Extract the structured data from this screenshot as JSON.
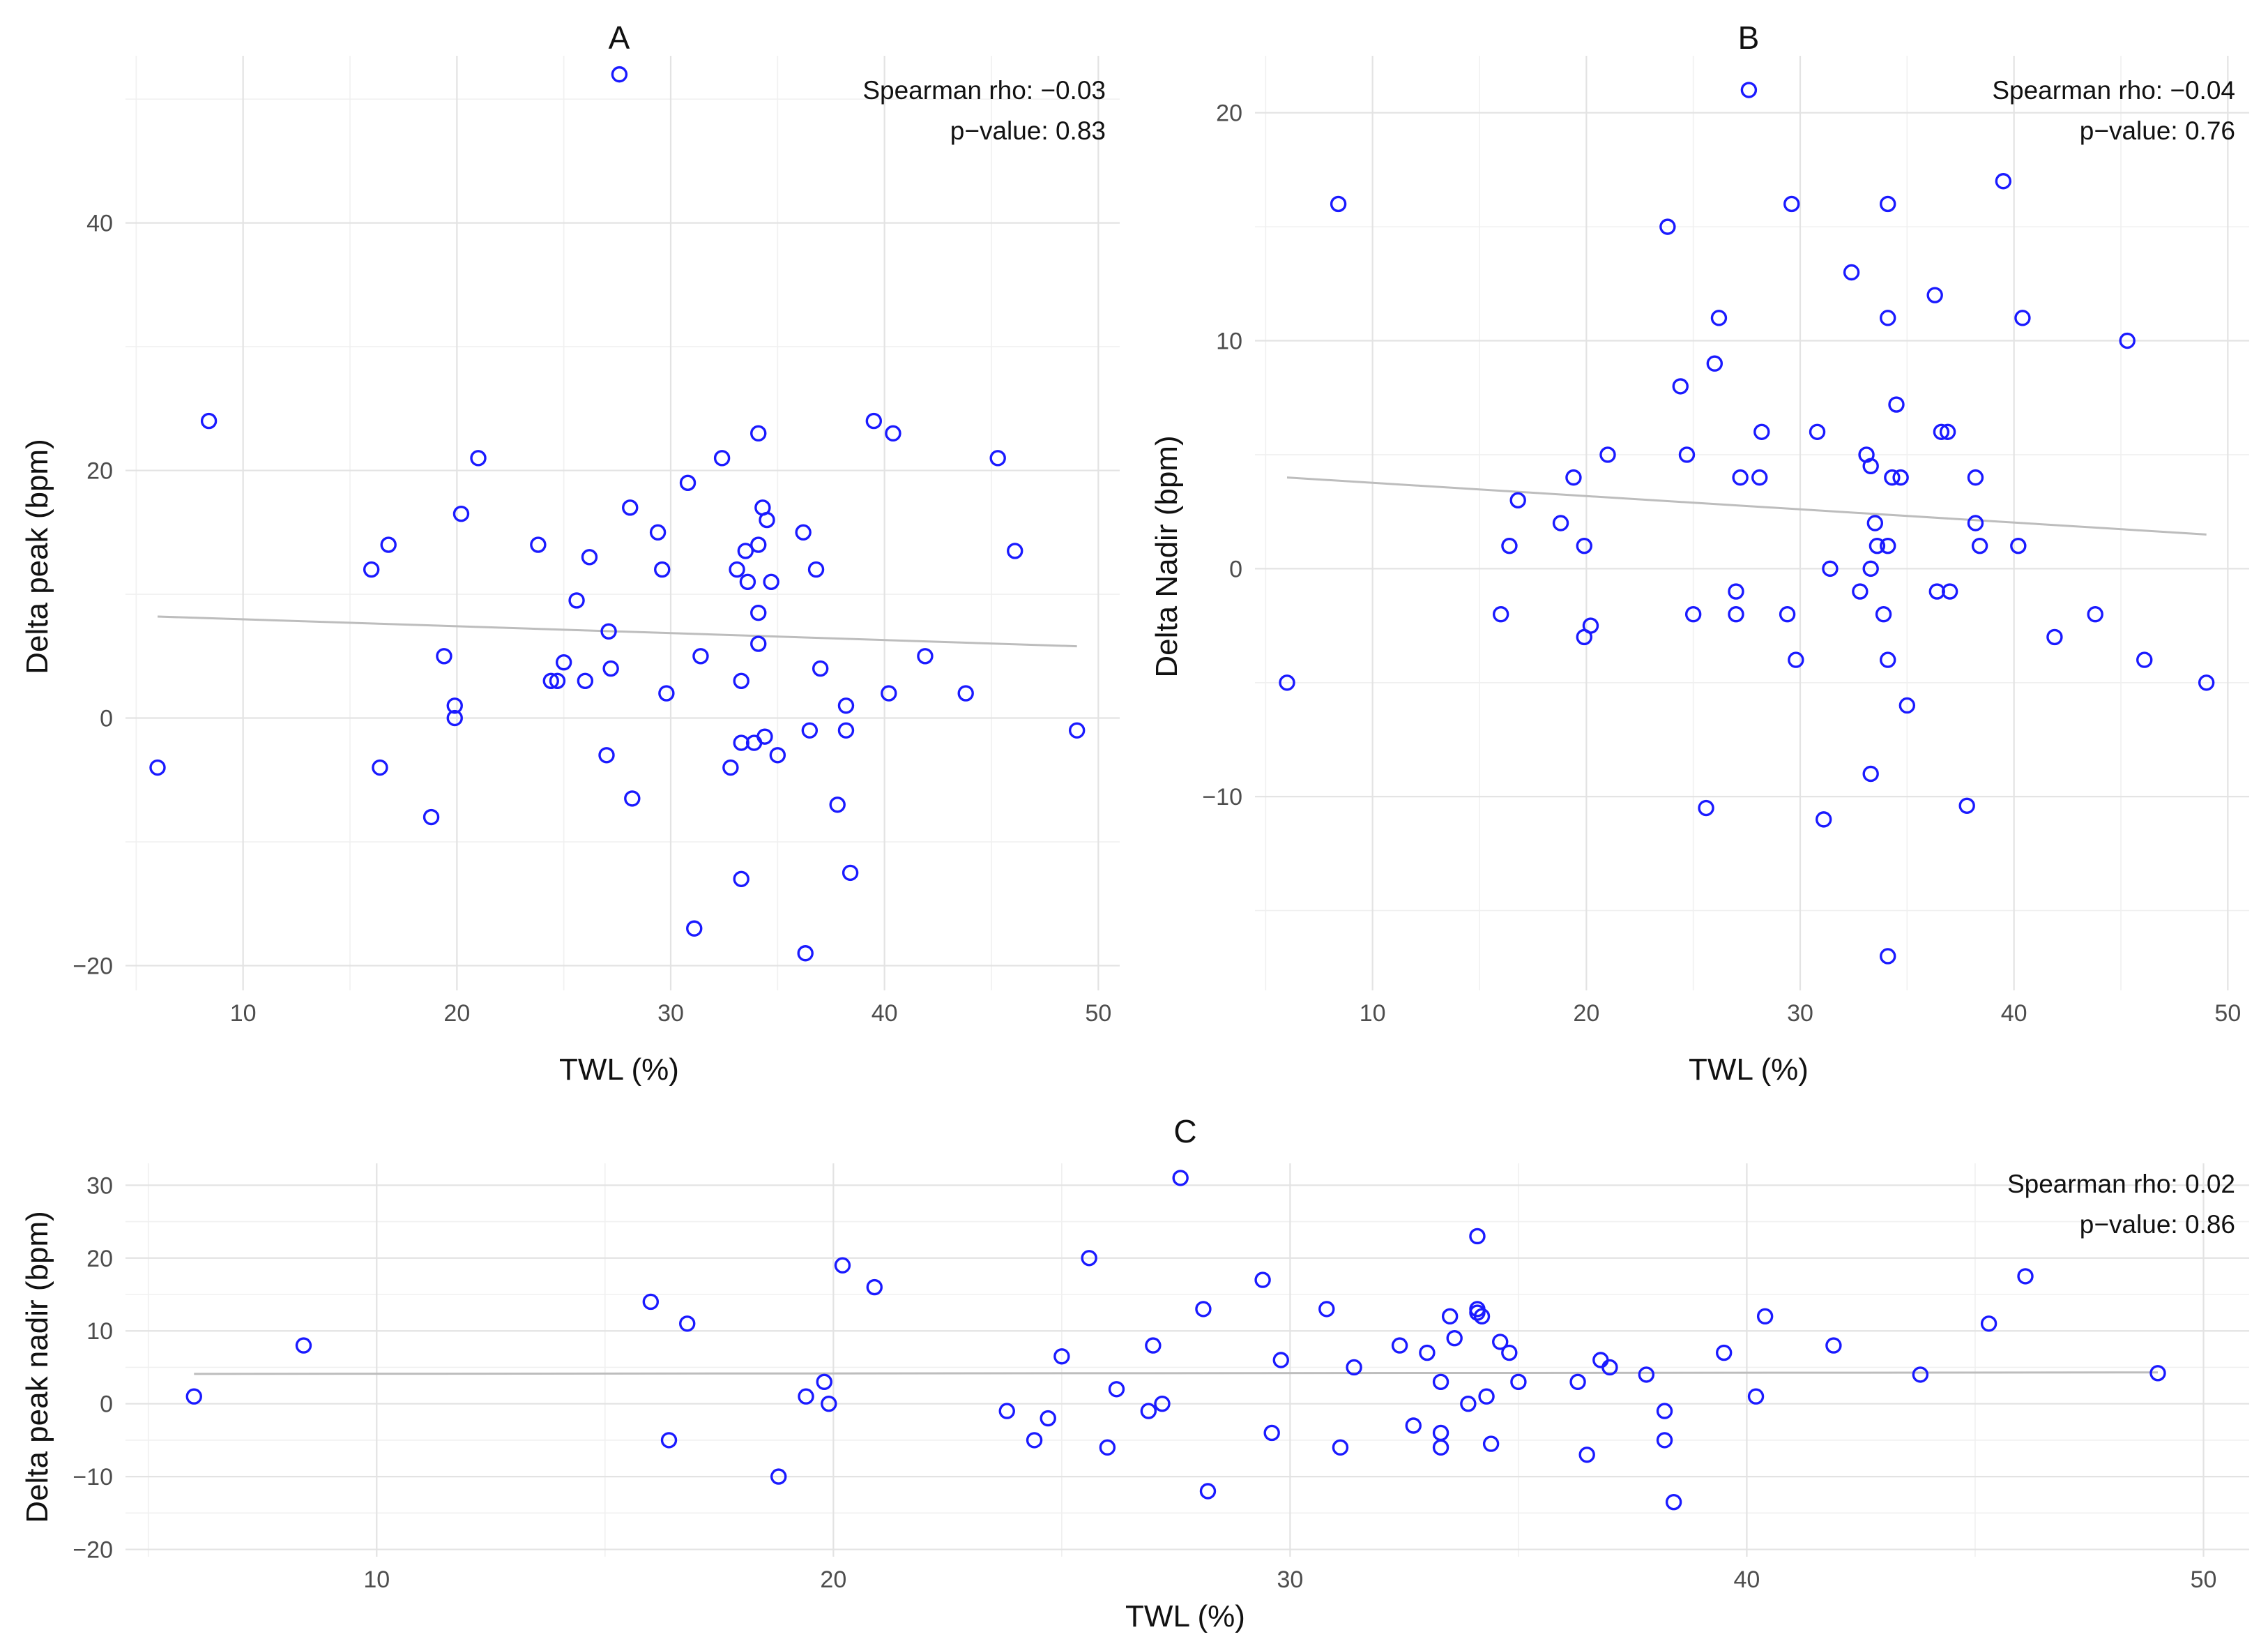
{
  "chart_data": [
    {
      "panel": "A",
      "type": "scatter",
      "title": "A",
      "xlabel": "TWL (%)",
      "ylabel": "Delta peak (bpm)",
      "xlim": [
        4.5,
        51
      ],
      "ylim": [
        -22,
        53.5
      ],
      "xticks": [
        10,
        20,
        30,
        40,
        50
      ],
      "yticks": [
        -20,
        0,
        20,
        40
      ],
      "grid": true,
      "annotation": {
        "rho": "Spearman rho: −0.03",
        "p": "p−value: 0.83"
      },
      "trend": {
        "x": [
          6,
          49
        ],
        "y": [
          8.2,
          5.8
        ]
      },
      "points": [
        [
          6,
          -4
        ],
        [
          8.4,
          24
        ],
        [
          16,
          12
        ],
        [
          16.4,
          -4
        ],
        [
          16.8,
          14
        ],
        [
          18.8,
          -8
        ],
        [
          19.4,
          5
        ],
        [
          19.9,
          1
        ],
        [
          19.9,
          0
        ],
        [
          20.2,
          16.5
        ],
        [
          21,
          21
        ],
        [
          23.8,
          14
        ],
        [
          24.4,
          3
        ],
        [
          24.7,
          3
        ],
        [
          25,
          4.5
        ],
        [
          25.6,
          9.5
        ],
        [
          26,
          3
        ],
        [
          26.2,
          13
        ],
        [
          27,
          -3
        ],
        [
          27.1,
          7
        ],
        [
          27.2,
          4
        ],
        [
          27.6,
          52
        ],
        [
          28.1,
          17
        ],
        [
          28.2,
          -6.5
        ],
        [
          29.4,
          15
        ],
        [
          29.6,
          12
        ],
        [
          29.8,
          2
        ],
        [
          30.8,
          19
        ],
        [
          31.1,
          -17
        ],
        [
          31.4,
          5
        ],
        [
          32.4,
          21
        ],
        [
          32.8,
          -4
        ],
        [
          33.1,
          12
        ],
        [
          33.3,
          3
        ],
        [
          33.3,
          -2
        ],
        [
          33.3,
          -13
        ],
        [
          33.5,
          13.5
        ],
        [
          33.6,
          11
        ],
        [
          33.9,
          -2
        ],
        [
          34.1,
          23
        ],
        [
          34.1,
          14
        ],
        [
          34.1,
          8.5
        ],
        [
          34.1,
          6
        ],
        [
          34.3,
          17
        ],
        [
          34.4,
          -1.5
        ],
        [
          34.5,
          16
        ],
        [
          34.7,
          11
        ],
        [
          35,
          -3
        ],
        [
          36.2,
          15
        ],
        [
          36.3,
          -19
        ],
        [
          36.5,
          -1
        ],
        [
          36.8,
          12
        ],
        [
          37,
          4
        ],
        [
          37.8,
          -7
        ],
        [
          38.2,
          1
        ],
        [
          38.2,
          -1
        ],
        [
          38.4,
          -12.5
        ],
        [
          39.5,
          24
        ],
        [
          40.2,
          2
        ],
        [
          40.4,
          23
        ],
        [
          41.9,
          5
        ],
        [
          43.8,
          2
        ],
        [
          45.3,
          21
        ],
        [
          46.1,
          13.5
        ],
        [
          49,
          -1
        ]
      ]
    },
    {
      "panel": "B",
      "type": "scatter",
      "title": "B",
      "xlabel": "TWL (%)",
      "ylabel": "Delta Nadir (bpm)",
      "xlim": [
        4.5,
        51
      ],
      "ylim": [
        -18.5,
        22.5
      ],
      "xticks": [
        10,
        20,
        30,
        40,
        50
      ],
      "yticks": [
        -10,
        0,
        10,
        20
      ],
      "grid": true,
      "annotation": {
        "rho": "Spearman rho: −0.04",
        "p": "p−value: 0.76"
      },
      "trend": {
        "x": [
          6,
          49
        ],
        "y": [
          4,
          1.5
        ]
      },
      "points": [
        [
          6,
          -5
        ],
        [
          8.4,
          16
        ],
        [
          16,
          -2
        ],
        [
          16.4,
          1
        ],
        [
          16.8,
          3
        ],
        [
          18.8,
          2
        ],
        [
          19.4,
          4
        ],
        [
          19.9,
          1
        ],
        [
          19.9,
          -3
        ],
        [
          20.2,
          -2.5
        ],
        [
          21,
          5
        ],
        [
          23.8,
          15
        ],
        [
          24.4,
          8
        ],
        [
          24.7,
          5
        ],
        [
          25,
          -2
        ],
        [
          25.6,
          -10.5
        ],
        [
          26,
          9
        ],
        [
          26.2,
          11
        ],
        [
          27,
          -1
        ],
        [
          27,
          -2
        ],
        [
          27.2,
          4
        ],
        [
          27.6,
          21
        ],
        [
          28.1,
          4
        ],
        [
          28.2,
          6
        ],
        [
          29.4,
          -2
        ],
        [
          29.6,
          16
        ],
        [
          29.8,
          -4
        ],
        [
          30.8,
          6
        ],
        [
          31.1,
          -11
        ],
        [
          31.4,
          0
        ],
        [
          32.4,
          13
        ],
        [
          32.8,
          -1
        ],
        [
          33.1,
          5
        ],
        [
          33.3,
          4.5
        ],
        [
          33.3,
          0
        ],
        [
          33.3,
          -9
        ],
        [
          33.5,
          2
        ],
        [
          33.6,
          1
        ],
        [
          33.9,
          -2
        ],
        [
          34.1,
          16
        ],
        [
          34.1,
          11
        ],
        [
          34.1,
          1
        ],
        [
          34.1,
          -4
        ],
        [
          34.1,
          -17
        ],
        [
          34.3,
          4
        ],
        [
          34.5,
          7.2
        ],
        [
          34.7,
          4
        ],
        [
          35,
          -6
        ],
        [
          36.3,
          12
        ],
        [
          36.4,
          -1
        ],
        [
          36.6,
          6
        ],
        [
          36.9,
          6
        ],
        [
          37,
          -1
        ],
        [
          37.8,
          -10.4
        ],
        [
          38.2,
          4
        ],
        [
          38.2,
          2
        ],
        [
          38.4,
          1
        ],
        [
          39.5,
          17
        ],
        [
          40.2,
          1
        ],
        [
          40.4,
          11
        ],
        [
          41.9,
          -3
        ],
        [
          43.8,
          -2
        ],
        [
          45.3,
          10
        ],
        [
          46.1,
          -4
        ],
        [
          49,
          -5
        ]
      ]
    },
    {
      "panel": "C",
      "type": "scatter",
      "title": "C",
      "xlabel": "TWL (%)",
      "ylabel": "Delta peak nadir (bpm)",
      "xlim": [
        4.5,
        51
      ],
      "ylim": [
        -21,
        33
      ],
      "xticks": [
        10,
        20,
        30,
        40,
        50
      ],
      "yticks": [
        -20,
        -10,
        0,
        10,
        20,
        30
      ],
      "grid": true,
      "annotation": {
        "rho": "Spearman rho: 0.02",
        "p": "p−value: 0.86"
      },
      "trend": {
        "x": [
          6,
          49
        ],
        "y": [
          4.1,
          4.3
        ]
      },
      "points": [
        [
          6,
          1
        ],
        [
          8.4,
          8
        ],
        [
          16,
          14
        ],
        [
          16.4,
          -5
        ],
        [
          16.8,
          11
        ],
        [
          18.8,
          -10
        ],
        [
          19.4,
          1
        ],
        [
          19.8,
          3
        ],
        [
          19.9,
          0
        ],
        [
          20.2,
          19
        ],
        [
          20.9,
          16
        ],
        [
          23.8,
          -1
        ],
        [
          24.4,
          -5
        ],
        [
          24.7,
          -2
        ],
        [
          25,
          6.5
        ],
        [
          25.6,
          20
        ],
        [
          26,
          -6
        ],
        [
          26.2,
          2
        ],
        [
          26.9,
          -1
        ],
        [
          27,
          8
        ],
        [
          27.2,
          0
        ],
        [
          27.6,
          31
        ],
        [
          28.1,
          13
        ],
        [
          28.2,
          -12
        ],
        [
          29.4,
          17
        ],
        [
          29.6,
          -4
        ],
        [
          29.8,
          6
        ],
        [
          30.8,
          13
        ],
        [
          31.1,
          -6
        ],
        [
          31.4,
          5
        ],
        [
          32.4,
          8
        ],
        [
          32.7,
          -3
        ],
        [
          33,
          7
        ],
        [
          33.3,
          3
        ],
        [
          33.3,
          -4
        ],
        [
          33.3,
          -6
        ],
        [
          33.5,
          12
        ],
        [
          33.6,
          9
        ],
        [
          33.9,
          0
        ],
        [
          34.1,
          23
        ],
        [
          34.1,
          13
        ],
        [
          34.1,
          12.5
        ],
        [
          34.2,
          12
        ],
        [
          34.3,
          1
        ],
        [
          34.4,
          -5.5
        ],
        [
          34.6,
          8.5
        ],
        [
          34.8,
          7
        ],
        [
          35,
          3
        ],
        [
          36.3,
          3
        ],
        [
          36.5,
          -7
        ],
        [
          36.8,
          6
        ],
        [
          37,
          5
        ],
        [
          37.8,
          4
        ],
        [
          38.2,
          -1
        ],
        [
          38.2,
          -5
        ],
        [
          38.4,
          -13.5
        ],
        [
          39.5,
          7
        ],
        [
          40.2,
          1
        ],
        [
          40.4,
          12
        ],
        [
          41.9,
          8
        ],
        [
          43.8,
          4
        ],
        [
          45.3,
          11
        ],
        [
          46.1,
          17.5
        ],
        [
          49,
          4.2
        ]
      ]
    }
  ]
}
